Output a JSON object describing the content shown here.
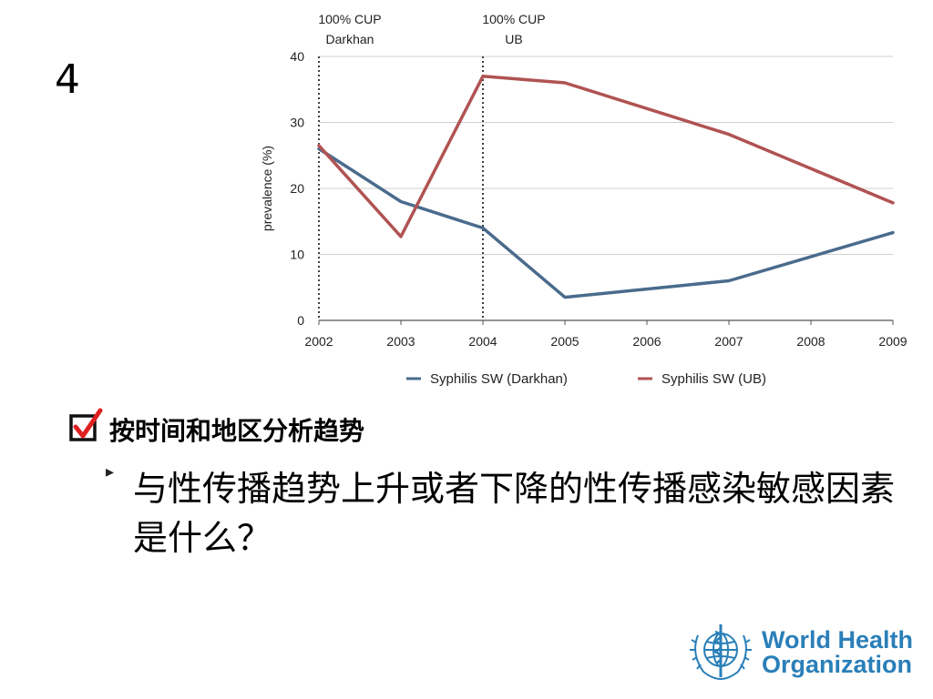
{
  "slide": {
    "number": "4",
    "heading": "按时间和地区分析趋势",
    "bullet_text": "与性传播趋势上升或者下降的性传播感染敏感因素是什么？"
  },
  "logo": {
    "line1": "World Health",
    "line2": "Organization",
    "color": "#2a7fb8"
  },
  "chart_data": {
    "type": "line",
    "x": [
      2002,
      2003,
      2004,
      2005,
      2006,
      2007,
      2008,
      2009
    ],
    "xlim": [
      2002,
      2009
    ],
    "ylim": [
      0,
      40
    ],
    "yticks": [
      0,
      10,
      20,
      30,
      40
    ],
    "ylabel": "prevalence (%)",
    "grid": true,
    "legend_position": "bottom",
    "series": [
      {
        "name": "Syphilis SW (Darkhan)",
        "color": "#4a6b8c",
        "points": [
          [
            2002,
            26
          ],
          [
            2003,
            18
          ],
          [
            2004,
            14
          ],
          [
            2005,
            3.5
          ],
          [
            2007,
            6
          ],
          [
            2009,
            13.3
          ]
        ]
      },
      {
        "name": "Syphilis SW (UB)",
        "color": "#b05352",
        "points": [
          [
            2002,
            26.5
          ],
          [
            2003,
            12.7
          ],
          [
            2004,
            37
          ],
          [
            2005,
            36
          ],
          [
            2007,
            28.2
          ],
          [
            2009,
            17.8
          ]
        ]
      }
    ],
    "annotations": [
      {
        "x": 2002,
        "line1": "100% CUP",
        "line2": "Darkhan"
      },
      {
        "x": 2004,
        "line1": "100% CUP",
        "line2": "UB"
      }
    ]
  }
}
